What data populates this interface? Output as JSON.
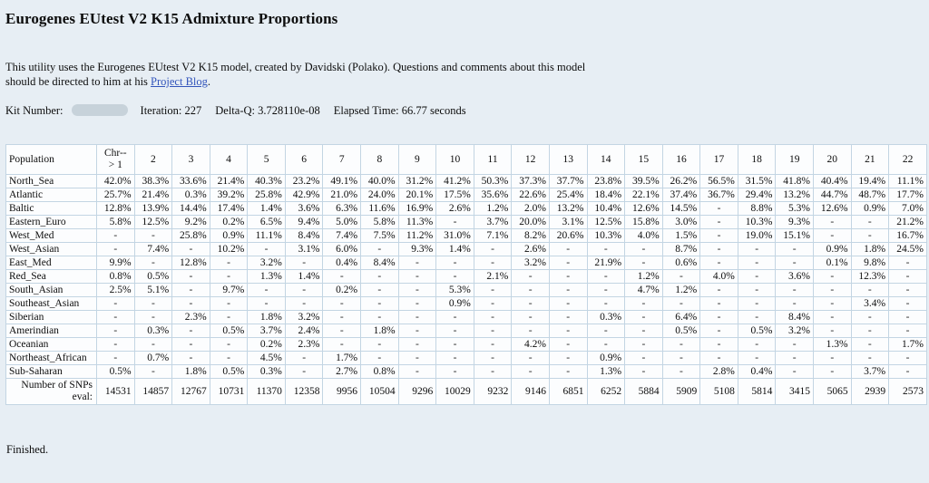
{
  "header": {
    "title": "Eurogenes EUtest V2 K15 Admixture Proportions",
    "intro_text": "This utility uses the Eurogenes EUtest V2 K15 model, created by Davidski (Polako). Questions and comments about this model should be directed to him at his ",
    "intro_link": "Project Blog",
    "intro_suffix": ".",
    "kit_label": "Kit Number:",
    "iteration": "Iteration: 227",
    "delta_q": "Delta-Q: 3.728110e-08",
    "elapsed_time": "Elapsed Time: 66.77 seconds"
  },
  "table": {
    "population_header": "Population",
    "chr1_header_line1": "Chr--",
    "chr1_header_line2": "> 1",
    "chromosome_headers": [
      "2",
      "3",
      "4",
      "5",
      "6",
      "7",
      "8",
      "9",
      "10",
      "11",
      "12",
      "13",
      "14",
      "15",
      "16",
      "17",
      "18",
      "19",
      "20",
      "21",
      "22"
    ],
    "highlight_color": "#ccccf0",
    "rows": [
      {
        "population": "North_Sea",
        "values": [
          "42.0%",
          "38.3%",
          "33.6%",
          "21.4%",
          "40.3%",
          "23.2%",
          "49.1%",
          "40.0%",
          "31.2%",
          "41.2%",
          "50.3%",
          "37.3%",
          "37.7%",
          "23.8%",
          "39.5%",
          "26.2%",
          "56.5%",
          "31.5%",
          "41.8%",
          "40.4%",
          "19.4%",
          "11.1%"
        ],
        "highlight": [
          1,
          1,
          1,
          0,
          1,
          0,
          1,
          1,
          1,
          1,
          1,
          1,
          1,
          0,
          1,
          1,
          1,
          1,
          1,
          1,
          0,
          0
        ]
      },
      {
        "population": "Atlantic",
        "values": [
          "25.7%",
          "21.4%",
          "0.3%",
          "39.2%",
          "25.8%",
          "42.9%",
          "21.0%",
          "24.0%",
          "20.1%",
          "17.5%",
          "35.6%",
          "22.6%",
          "25.4%",
          "18.4%",
          "22.1%",
          "37.4%",
          "36.7%",
          "29.4%",
          "13.2%",
          "44.7%",
          "48.7%",
          "17.7%"
        ],
        "highlight": [
          1,
          0,
          0,
          1,
          0,
          1,
          0,
          0,
          0,
          0,
          1,
          0,
          1,
          0,
          0,
          1,
          1,
          1,
          0,
          1,
          1,
          0
        ]
      },
      {
        "population": "Baltic",
        "values": [
          "12.8%",
          "13.9%",
          "14.4%",
          "17.4%",
          "1.4%",
          "3.6%",
          "6.3%",
          "11.6%",
          "16.9%",
          "2.6%",
          "1.2%",
          "2.0%",
          "13.2%",
          "10.4%",
          "12.6%",
          "14.5%",
          "-",
          "8.8%",
          "5.3%",
          "12.6%",
          "0.9%",
          "7.0%"
        ],
        "highlight": [
          0,
          0,
          0,
          1,
          0,
          0,
          0,
          0,
          0,
          0,
          0,
          0,
          0,
          0,
          0,
          1,
          0,
          0,
          0,
          0,
          0,
          0
        ]
      },
      {
        "population": "Eastern_Euro",
        "values": [
          "5.8%",
          "12.5%",
          "9.2%",
          "0.2%",
          "6.5%",
          "9.4%",
          "5.0%",
          "5.8%",
          "11.3%",
          "-",
          "3.7%",
          "20.0%",
          "3.1%",
          "12.5%",
          "15.8%",
          "3.0%",
          "-",
          "10.3%",
          "9.3%",
          "-",
          "-",
          "21.2%"
        ],
        "highlight": [
          0,
          0,
          0,
          0,
          0,
          0,
          0,
          0,
          0,
          0,
          0,
          1,
          0,
          0,
          0,
          0,
          0,
          0,
          0,
          0,
          0,
          1
        ]
      },
      {
        "population": "West_Med",
        "values": [
          "-",
          "-",
          "25.8%",
          "0.9%",
          "11.1%",
          "8.4%",
          "7.4%",
          "7.5%",
          "11.2%",
          "31.0%",
          "7.1%",
          "8.2%",
          "20.6%",
          "10.3%",
          "4.0%",
          "1.5%",
          "-",
          "19.0%",
          "15.1%",
          "-",
          "-",
          "16.7%"
        ],
        "highlight": [
          0,
          0,
          1,
          0,
          0,
          0,
          0,
          0,
          0,
          1,
          0,
          0,
          1,
          0,
          0,
          0,
          0,
          1,
          1,
          0,
          0,
          1
        ]
      },
      {
        "population": "West_Asian",
        "values": [
          "-",
          "7.4%",
          "-",
          "10.2%",
          "-",
          "3.1%",
          "6.0%",
          "-",
          "9.3%",
          "1.4%",
          "-",
          "2.6%",
          "-",
          "-",
          "-",
          "8.7%",
          "-",
          "-",
          "-",
          "0.9%",
          "1.8%",
          "24.5%"
        ],
        "highlight": [
          0,
          0,
          0,
          0,
          0,
          0,
          0,
          0,
          0,
          0,
          0,
          0,
          0,
          0,
          0,
          1,
          0,
          0,
          0,
          0,
          0,
          1
        ]
      },
      {
        "population": "East_Med",
        "values": [
          "9.9%",
          "-",
          "12.8%",
          "-",
          "3.2%",
          "-",
          "0.4%",
          "8.4%",
          "-",
          "-",
          "-",
          "3.2%",
          "-",
          "21.9%",
          "-",
          "0.6%",
          "-",
          "-",
          "-",
          "0.1%",
          "9.8%",
          "-"
        ],
        "highlight": [
          1,
          0,
          1,
          0,
          0,
          0,
          0,
          1,
          0,
          0,
          0,
          0,
          0,
          1,
          0,
          0,
          0,
          0,
          0,
          0,
          1,
          0
        ]
      },
      {
        "population": "Red_Sea",
        "values": [
          "0.8%",
          "0.5%",
          "-",
          "-",
          "1.3%",
          "1.4%",
          "-",
          "-",
          "-",
          "-",
          "2.1%",
          "-",
          "-",
          "-",
          "1.2%",
          "-",
          "4.0%",
          "-",
          "3.6%",
          "-",
          "12.3%",
          "-"
        ],
        "highlight": [
          0,
          0,
          0,
          0,
          0,
          0,
          0,
          0,
          0,
          0,
          0,
          0,
          0,
          0,
          0,
          0,
          0,
          0,
          0,
          0,
          1,
          0
        ]
      },
      {
        "population": "South_Asian",
        "values": [
          "2.5%",
          "5.1%",
          "-",
          "9.7%",
          "-",
          "-",
          "0.2%",
          "-",
          "-",
          "5.3%",
          "-",
          "-",
          "-",
          "-",
          "4.7%",
          "1.2%",
          "-",
          "-",
          "-",
          "-",
          "-",
          "-"
        ],
        "highlight": [
          0,
          0,
          0,
          1,
          0,
          0,
          0,
          0,
          0,
          1,
          0,
          0,
          0,
          0,
          0,
          0,
          0,
          0,
          0,
          0,
          0,
          0
        ]
      },
      {
        "population": "Southeast_Asian",
        "values": [
          "-",
          "-",
          "-",
          "-",
          "-",
          "-",
          "-",
          "-",
          "-",
          "0.9%",
          "-",
          "-",
          "-",
          "-",
          "-",
          "-",
          "-",
          "-",
          "-",
          "-",
          "3.4%",
          "-"
        ],
        "highlight": [
          0,
          0,
          0,
          0,
          0,
          0,
          0,
          0,
          0,
          0,
          0,
          0,
          0,
          0,
          0,
          0,
          0,
          0,
          0,
          0,
          1,
          0
        ]
      },
      {
        "population": "Siberian",
        "values": [
          "-",
          "-",
          "2.3%",
          "-",
          "1.8%",
          "3.2%",
          "-",
          "-",
          "-",
          "-",
          "-",
          "-",
          "-",
          "0.3%",
          "-",
          "6.4%",
          "-",
          "-",
          "8.4%",
          "-",
          "-",
          "-"
        ],
        "highlight": [
          0,
          0,
          0,
          0,
          0,
          0,
          0,
          0,
          0,
          0,
          0,
          0,
          0,
          0,
          0,
          1,
          0,
          0,
          1,
          0,
          0,
          0
        ]
      },
      {
        "population": "Amerindian",
        "values": [
          "-",
          "0.3%",
          "-",
          "0.5%",
          "3.7%",
          "2.4%",
          "-",
          "1.8%",
          "-",
          "-",
          "-",
          "-",
          "-",
          "-",
          "-",
          "0.5%",
          "-",
          "0.5%",
          "3.2%",
          "-",
          "-",
          "-"
        ],
        "highlight": [
          0,
          0,
          0,
          0,
          1,
          0,
          0,
          0,
          0,
          0,
          0,
          0,
          0,
          0,
          0,
          0,
          0,
          0,
          0,
          0,
          0,
          0
        ]
      },
      {
        "population": "Oceanian",
        "values": [
          "-",
          "-",
          "-",
          "-",
          "0.2%",
          "2.3%",
          "-",
          "-",
          "-",
          "-",
          "-",
          "4.2%",
          "-",
          "-",
          "-",
          "-",
          "-",
          "-",
          "-",
          "1.3%",
          "-",
          "1.7%"
        ],
        "highlight": [
          0,
          0,
          0,
          0,
          0,
          1,
          0,
          0,
          0,
          0,
          0,
          1,
          0,
          0,
          0,
          0,
          0,
          0,
          0,
          0,
          0,
          0
        ]
      },
      {
        "population": "Northeast_African",
        "values": [
          "-",
          "0.7%",
          "-",
          "-",
          "4.5%",
          "-",
          "1.7%",
          "-",
          "-",
          "-",
          "-",
          "-",
          "-",
          "0.9%",
          "-",
          "-",
          "-",
          "-",
          "-",
          "-",
          "-",
          "-"
        ],
        "highlight": [
          0,
          0,
          0,
          0,
          1,
          0,
          1,
          0,
          0,
          0,
          0,
          0,
          0,
          0,
          0,
          0,
          0,
          0,
          0,
          0,
          0,
          0
        ]
      },
      {
        "population": "Sub-Saharan",
        "values": [
          "0.5%",
          "-",
          "1.8%",
          "0.5%",
          "0.3%",
          "-",
          "2.7%",
          "0.8%",
          "-",
          "-",
          "-",
          "-",
          "-",
          "1.3%",
          "-",
          "-",
          "2.8%",
          "0.4%",
          "-",
          "-",
          "3.7%",
          "-"
        ],
        "highlight": [
          0,
          0,
          1,
          0,
          0,
          0,
          1,
          0,
          0,
          0,
          0,
          0,
          0,
          0,
          0,
          0,
          1,
          0,
          0,
          0,
          1,
          0
        ]
      }
    ],
    "snp_row": {
      "label_line1": "Number of SNPs",
      "label_line2": "eval:",
      "values": [
        "14531",
        "14857",
        "12767",
        "10731",
        "11370",
        "12358",
        "9956",
        "10504",
        "9296",
        "10029",
        "9232",
        "9146",
        "6851",
        "6252",
        "5884",
        "5909",
        "5108",
        "5814",
        "3415",
        "5065",
        "2939",
        "2573"
      ]
    }
  },
  "footer": {
    "finished": "Finished."
  }
}
